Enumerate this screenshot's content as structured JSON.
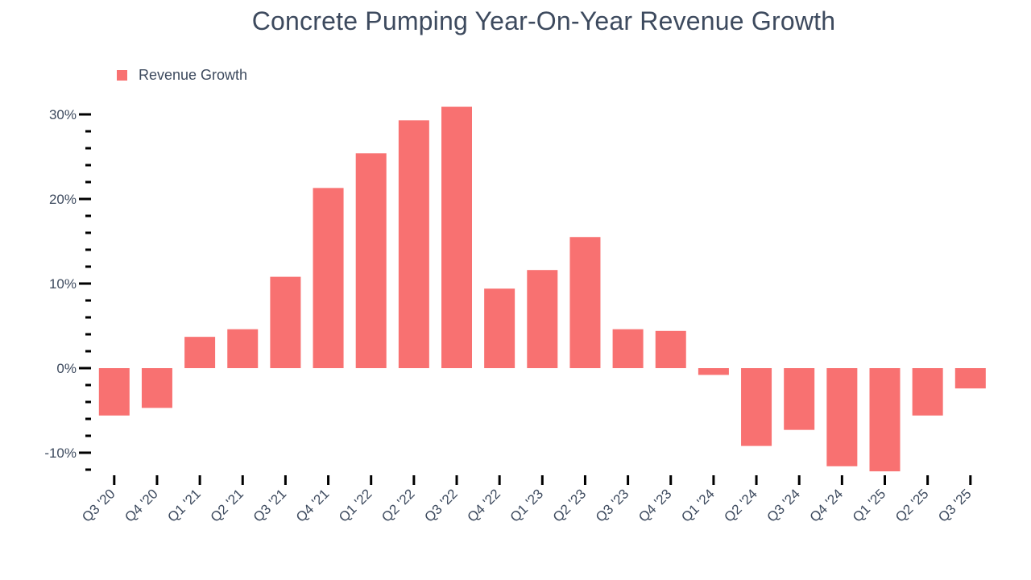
{
  "title": "Concrete Pumping Year-On-Year Revenue Growth",
  "legend": {
    "label": "Revenue Growth"
  },
  "colors": {
    "bar": "#f87171",
    "text": "#3d4a5e",
    "tick": "#000000",
    "background": "#ffffff"
  },
  "chart_data": {
    "type": "bar",
    "title": "Concrete Pumping Year-On-Year Revenue Growth",
    "series_name": "Revenue Growth",
    "categories": [
      "Q3 '20",
      "Q4 '20",
      "Q1 '21",
      "Q2 '21",
      "Q3 '21",
      "Q4 '21",
      "Q1 '22",
      "Q2 '22",
      "Q3 '22",
      "Q4 '22",
      "Q1 '23",
      "Q2 '23",
      "Q3 '23",
      "Q4 '23",
      "Q1 '24",
      "Q2 '24",
      "Q3 '24",
      "Q4 '24",
      "Q1 '25",
      "Q2 '25",
      "Q3 '25"
    ],
    "values": [
      -5.6,
      -4.7,
      3.7,
      4.6,
      10.8,
      21.3,
      25.4,
      29.3,
      30.9,
      9.4,
      11.6,
      15.5,
      4.6,
      4.4,
      -0.8,
      -9.2,
      -7.3,
      -11.6,
      -12.2,
      -5.6,
      -2.4
    ],
    "unit": "%",
    "xlabel": "",
    "ylabel": "",
    "ylim": [
      -13,
      32
    ],
    "grid": false,
    "legend_position": "top-left",
    "y_axis": {
      "major_ticks": [
        {
          "value": 30,
          "label": "30%"
        },
        {
          "value": 20,
          "label": "20%"
        },
        {
          "value": 10,
          "label": "10%"
        },
        {
          "value": 0,
          "label": "0%"
        },
        {
          "value": -10,
          "label": "-10%"
        }
      ],
      "minor_tick_step": 2,
      "minor_tick_min": -12,
      "minor_tick_max": 28
    }
  }
}
